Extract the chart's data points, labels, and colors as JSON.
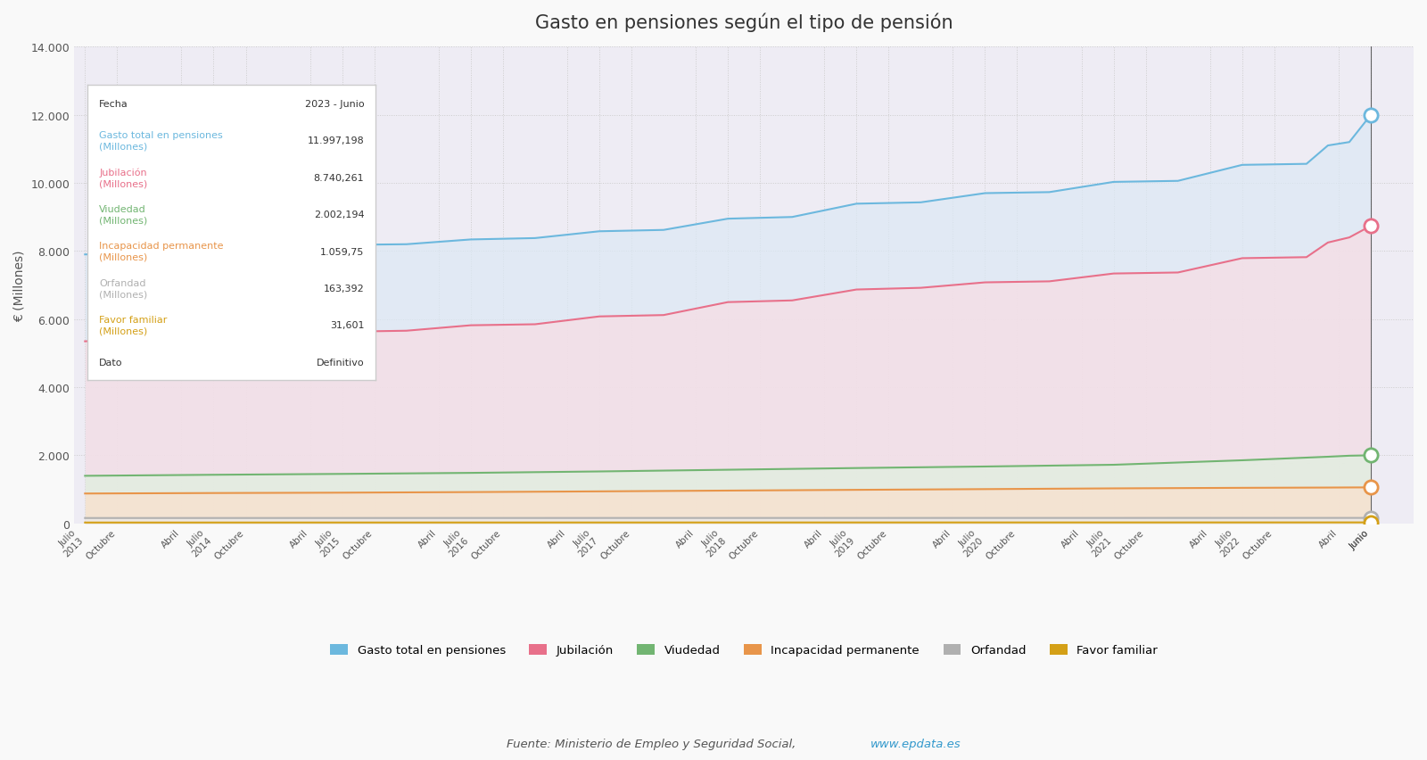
{
  "title": "Gasto en pensiones según el tipo de pensión",
  "ylabel": "€ (Millones)",
  "source": "Fuente: Ministerio de Empleo y Seguridad Social, ",
  "source_url": "www.epdata.es",
  "background_color": "#f9f9f9",
  "plot_bg_color": "#eeecf4",
  "series": {
    "total": {
      "label": "Gasto total en pensiones",
      "color": "#6cb8de",
      "fill_color": "#dce9f5"
    },
    "jubilacion": {
      "label": "Jubilación",
      "color": "#e8708a",
      "fill_color": "#f9dde4"
    },
    "viudedad": {
      "label": "Viudedad",
      "color": "#72b572",
      "fill_color": "#dff0df"
    },
    "incapacidad": {
      "label": "Incapacidad permanente",
      "color": "#e8954a",
      "fill_color": "#fae0cc"
    },
    "orfandad": {
      "label": "Orfandad",
      "color": "#b0b0b0",
      "fill_color": "#ebebeb"
    },
    "favor": {
      "label": "Favor familiar",
      "color": "#d4a017",
      "fill_color": "#f5eacc"
    }
  },
  "tooltip": {
    "fecha": "2023 - Junio",
    "total": "11.997,198",
    "jubilacion": "8.740,261",
    "viudedad": "2.002,194",
    "incapacidad": "1.059,75",
    "orfandad": "163,392",
    "favor": "31,601",
    "dato": "Definitivo"
  },
  "ylim": [
    0,
    14000
  ],
  "yticks": [
    0,
    2000,
    4000,
    6000,
    8000,
    10000,
    12000,
    14000
  ],
  "ytick_labels": [
    "0",
    "2.000",
    "4.000",
    "6.000",
    "8.000",
    "10.000",
    "12.000",
    "14.000"
  ]
}
